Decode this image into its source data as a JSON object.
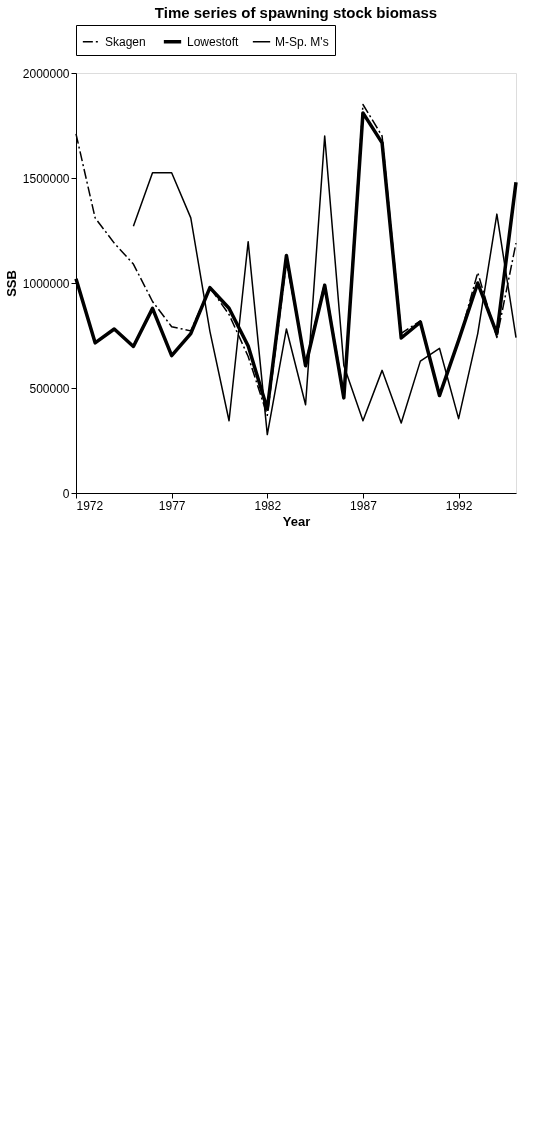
{
  "chart_data": {
    "type": "line",
    "title": "Time series of spawning stock biomass",
    "xlabel": "Year",
    "ylabel": "SSB",
    "x": [
      1972,
      1973,
      1974,
      1975,
      1976,
      1977,
      1978,
      1979,
      1980,
      1981,
      1982,
      1983,
      1984,
      1985,
      1986,
      1987,
      1988,
      1989,
      1990,
      1991,
      1992,
      1993,
      1994,
      1995
    ],
    "series": [
      {
        "name": "Skagen",
        "color": "#000000",
        "line_style": "dashed",
        "values": [
          1710000,
          1310000,
          1190000,
          1090000,
          912000,
          792000,
          772000,
          978000,
          850000,
          650000,
          370000,
          1100000,
          620000,
          1000000,
          470000,
          1850000,
          1700000,
          760000,
          820000,
          470000,
          720000,
          1050000,
          740000,
          1190000
        ]
      },
      {
        "name": "Lowestoft",
        "color": "#000000",
        "line_style": "solid",
        "values": [
          1020000,
          715000,
          781000,
          698000,
          879000,
          654000,
          759000,
          978000,
          880000,
          700000,
          400000,
          1131000,
          606000,
          989000,
          453000,
          1810000,
          1667000,
          738000,
          814000,
          464000,
          727000,
          1000000,
          759000,
          1480000
        ]
      },
      {
        "name": "M-Sp. M's",
        "color": "#000000",
        "line_style": "solid",
        "values": [
          null,
          null,
          null,
          1270000,
          1525000,
          1525000,
          1310000,
          770000,
          344000,
          1197000,
          278000,
          781000,
          420000,
          1700000,
          607000,
          344000,
          584000,
          333000,
          628000,
          689000,
          354000,
          759000,
          1328000,
          740000
        ]
      }
    ],
    "xlim": [
      1972,
      1995
    ],
    "xticks": [
      1972,
      1977,
      1982,
      1987,
      1992
    ],
    "ylim": [
      0,
      2000000
    ],
    "yticks": [
      0,
      500000,
      1000000,
      1500000,
      2000000
    ],
    "grid": false,
    "legend": "top",
    "marker": "none"
  }
}
